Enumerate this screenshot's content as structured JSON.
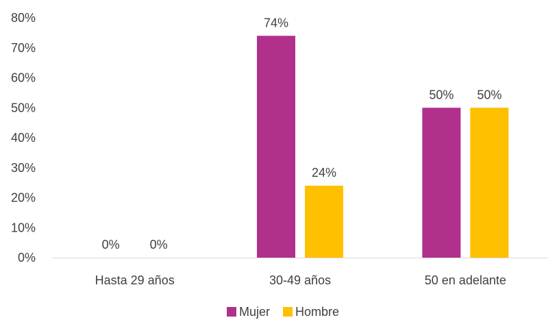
{
  "chart_data": {
    "type": "bar",
    "title": "",
    "xlabel": "",
    "ylabel": "",
    "categories": [
      "Hasta 29 años",
      "30-49 años",
      "50 en adelante"
    ],
    "series": [
      {
        "name": "Mujer",
        "color": "#b0308c",
        "values": [
          0,
          74,
          50
        ],
        "labels": [
          "0%",
          "74%",
          "50%"
        ]
      },
      {
        "name": "Hombre",
        "color": "#ffc000",
        "values": [
          0,
          24,
          50
        ],
        "labels": [
          "0%",
          "24%",
          "50%"
        ]
      }
    ],
    "ylim": [
      0,
      80
    ],
    "yticks": [
      {
        "value": 0,
        "label": "0%"
      },
      {
        "value": 10,
        "label": "10%"
      },
      {
        "value": 20,
        "label": "20%"
      },
      {
        "value": 30,
        "label": "30%"
      },
      {
        "value": 40,
        "label": "40%"
      },
      {
        "value": 50,
        "label": "50%"
      },
      {
        "value": 60,
        "label": "60%"
      },
      {
        "value": 70,
        "label": "70%"
      },
      {
        "value": 80,
        "label": "80%"
      }
    ],
    "grid": false,
    "legend": "bottom-center"
  }
}
